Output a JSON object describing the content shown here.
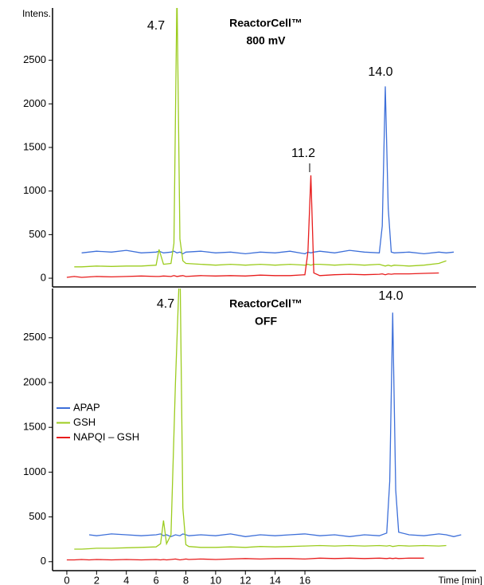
{
  "chart_data": [
    {
      "type": "line",
      "title": "ReactorCell™",
      "subtitle": "800 mV",
      "y_label": "Intens.",
      "x": [
        0,
        0.5,
        1,
        2,
        3,
        4,
        5,
        6,
        6.2,
        6.5,
        7,
        7.2,
        7.4,
        7.6,
        7.8,
        8,
        9,
        10,
        11,
        12,
        13,
        14,
        15,
        16,
        16.2,
        16.4,
        16.6,
        17,
        18,
        19,
        20,
        21,
        21.2,
        21.4,
        21.6,
        21.8,
        22,
        23,
        24,
        25,
        25.5,
        26,
        26.5
      ],
      "series": [
        {
          "name": "APAP",
          "color": "#3d6fd9",
          "values": [
            null,
            null,
            290,
            310,
            300,
            320,
            290,
            300,
            310,
            290,
            300,
            310,
            290,
            300,
            280,
            300,
            310,
            290,
            300,
            280,
            300,
            290,
            310,
            280,
            300,
            290,
            300,
            310,
            290,
            320,
            300,
            290,
            600,
            2200,
            800,
            300,
            290,
            300,
            280,
            300,
            290,
            300,
            null
          ]
        },
        {
          "name": "GSH",
          "color": "#9ccc1e",
          "values": [
            null,
            130,
            130,
            140,
            135,
            140,
            140,
            150,
            330,
            160,
            170,
            400,
            3300,
            450,
            200,
            170,
            160,
            150,
            160,
            150,
            160,
            150,
            160,
            150,
            160,
            150,
            160,
            160,
            150,
            160,
            150,
            160,
            150,
            140,
            150,
            140,
            150,
            140,
            150,
            170,
            200,
            null,
            null
          ]
        },
        {
          "name": "NAPQI – GSH",
          "color": "#e81c1c",
          "values": [
            10,
            20,
            10,
            20,
            15,
            20,
            25,
            20,
            20,
            25,
            20,
            30,
            20,
            25,
            30,
            20,
            30,
            25,
            30,
            25,
            35,
            30,
            30,
            40,
            300,
            1180,
            60,
            30,
            40,
            45,
            40,
            45,
            50,
            40,
            50,
            45,
            50,
            50,
            55,
            60,
            null,
            null,
            null
          ]
        }
      ],
      "annotations": [
        "4.7",
        "11.2",
        "14.0"
      ],
      "xlim": [
        -0.96,
        27.5
      ],
      "ylim": [
        -100,
        3100
      ],
      "yticks": [
        0,
        500,
        1000,
        1500,
        2000,
        2500
      ]
    },
    {
      "type": "line",
      "title": "ReactorCell™",
      "subtitle": "OFF",
      "x_label": "Time [min]",
      "x": [
        0,
        0.5,
        1,
        1.5,
        2,
        3,
        4,
        5,
        6,
        6.3,
        6.5,
        6.7,
        7,
        7.3,
        7.6,
        7.8,
        8,
        8.2,
        9,
        10,
        11,
        12,
        13,
        14,
        15,
        16,
        17,
        18,
        19,
        20,
        21,
        21.5,
        21.7,
        21.9,
        22.1,
        22.3,
        23,
        24,
        25,
        25.5,
        26,
        26.5
      ],
      "series": [
        {
          "name": "APAP",
          "color": "#3d6fd9",
          "values": [
            null,
            null,
            null,
            300,
            290,
            310,
            300,
            290,
            300,
            310,
            290,
            300,
            280,
            300,
            290,
            310,
            300,
            290,
            300,
            290,
            310,
            280,
            300,
            290,
            300,
            310,
            290,
            300,
            280,
            300,
            290,
            320,
            900,
            2780,
            800,
            330,
            300,
            290,
            310,
            300,
            280,
            300
          ]
        },
        {
          "name": "GSH",
          "color": "#9ccc1e",
          "values": [
            null,
            140,
            140,
            145,
            150,
            150,
            155,
            160,
            165,
            200,
            460,
            200,
            300,
            2000,
            3400,
            600,
            190,
            170,
            160,
            160,
            165,
            160,
            170,
            165,
            170,
            175,
            180,
            175,
            180,
            175,
            180,
            175,
            180,
            170,
            175,
            180,
            175,
            180,
            175,
            180,
            null,
            null
          ]
        },
        {
          "name": "NAPQI – GSH",
          "color": "#e81c1c",
          "values": [
            20,
            20,
            25,
            20,
            25,
            20,
            25,
            20,
            25,
            20,
            25,
            20,
            25,
            30,
            20,
            25,
            30,
            25,
            30,
            25,
            30,
            35,
            30,
            35,
            35,
            30,
            40,
            35,
            40,
            35,
            40,
            35,
            40,
            35,
            40,
            35,
            40,
            40,
            null,
            null,
            null,
            null
          ]
        }
      ],
      "annotations": [
        "4.7",
        "14.0"
      ],
      "legend": "left",
      "xlim": [
        -0.96,
        27.5
      ],
      "xticks": [
        0,
        2,
        4,
        6,
        8,
        10,
        12,
        14,
        16
      ],
      "ylim": [
        -100,
        3050
      ],
      "yticks": [
        0,
        500,
        1000,
        1500,
        2000,
        2500
      ]
    }
  ]
}
